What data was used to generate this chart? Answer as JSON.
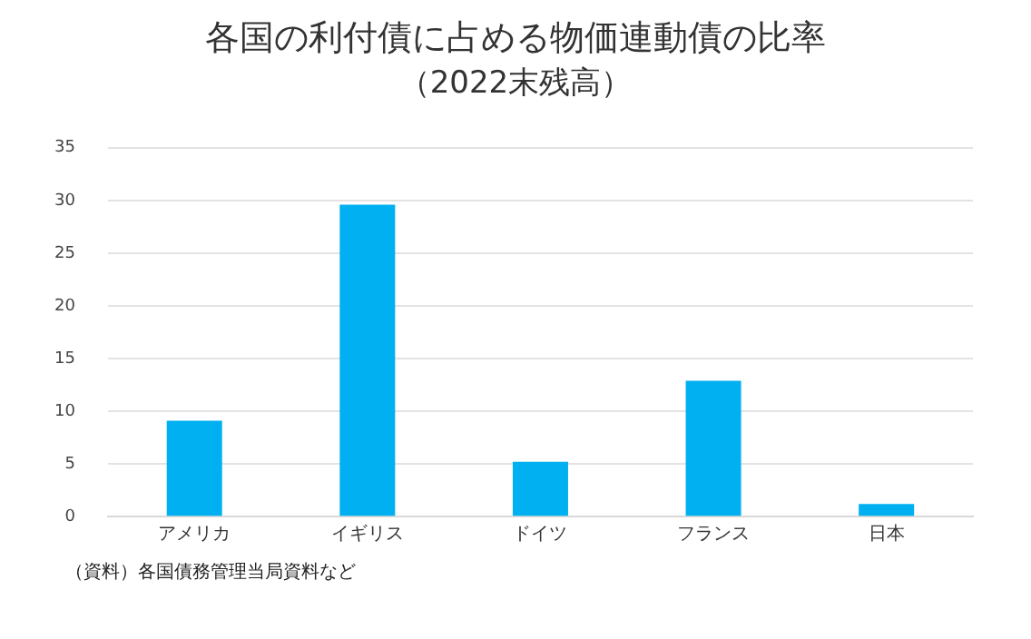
{
  "chart_data": {
    "type": "bar",
    "title": "各国の利付債に占める物価連動債の比率",
    "subtitle": "（2022末残高）",
    "categories": [
      "アメリカ",
      "イギリス",
      "ドイツ",
      "フランス",
      "日本"
    ],
    "values": [
      9.1,
      29.6,
      5.2,
      12.9,
      1.2
    ],
    "color": "#00b0f0",
    "ylim": [
      0,
      35
    ],
    "yticks": [
      0,
      5,
      10,
      15,
      20,
      25,
      30,
      35
    ],
    "grid": "y",
    "legend": false,
    "annotations": [
      "（資料）各国債務管理当局資料など"
    ]
  }
}
